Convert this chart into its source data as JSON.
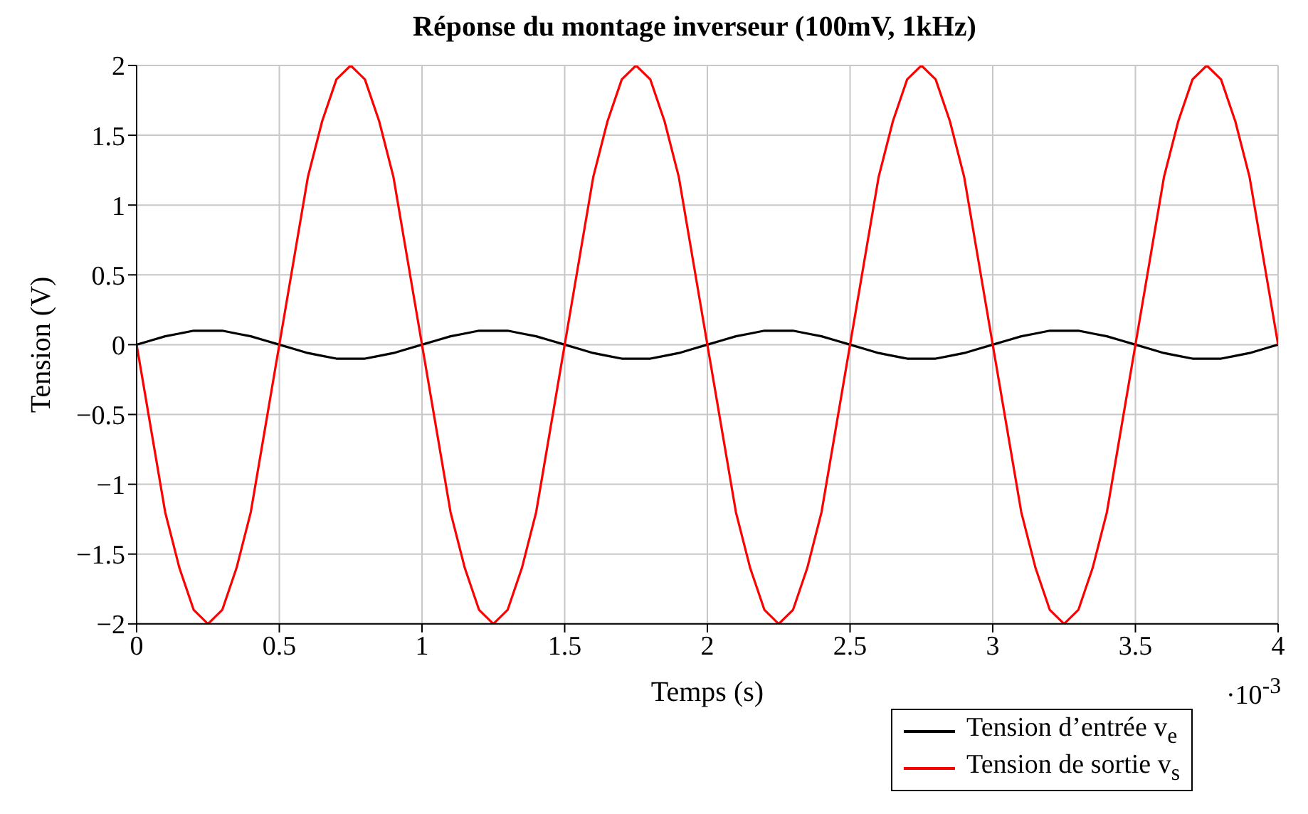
{
  "chart_data": {
    "type": "line",
    "title": "Réponse du montage inverseur (100mV, 1kHz)",
    "xlabel": "Temps (s)",
    "ylabel": "Tension (V)",
    "annotations": [
      "·10$^{-3}$"
    ],
    "x": [
      0,
      0.05,
      0.1,
      0.15,
      0.2,
      0.25,
      0.3,
      0.35,
      0.4,
      0.45,
      0.5,
      0.55,
      0.6,
      0.65,
      0.7,
      0.75,
      0.8,
      0.85,
      0.9,
      0.95,
      1,
      1.05,
      1.1,
      1.15,
      1.2,
      1.25,
      1.3,
      1.35,
      1.4,
      1.45,
      1.5,
      1.55,
      1.6,
      1.65,
      1.7,
      1.75,
      1.8,
      1.85,
      1.9,
      1.95,
      2,
      2.05,
      2.1,
      2.15,
      2.2,
      2.25,
      2.3,
      2.35,
      2.4,
      2.45,
      2.5,
      2.55,
      2.6,
      2.65,
      2.7,
      2.75,
      2.8,
      2.85,
      2.9,
      2.95,
      3,
      3.05,
      3.1,
      3.15,
      3.2,
      3.25,
      3.3,
      3.35,
      3.4,
      3.45,
      3.5,
      3.55,
      3.6,
      3.65,
      3.7,
      3.75,
      3.8,
      3.85,
      3.9,
      3.95,
      4
    ],
    "series": [
      {
        "name": "Tension d’entrée v$_{e}$",
        "color": "#000000",
        "values": [
          0,
          0.03,
          0.06,
          0.08,
          0.1,
          0.1,
          0.1,
          0.08,
          0.06,
          0.03,
          0,
          -0.03,
          -0.06,
          -0.08,
          -0.1,
          -0.1,
          -0.1,
          -0.08,
          -0.06,
          -0.03,
          0,
          0.03,
          0.06,
          0.08,
          0.1,
          0.1,
          0.1,
          0.08,
          0.06,
          0.03,
          0,
          -0.03,
          -0.06,
          -0.08,
          -0.1,
          -0.1,
          -0.1,
          -0.08,
          -0.06,
          -0.03,
          0,
          0.03,
          0.06,
          0.08,
          0.1,
          0.1,
          0.1,
          0.08,
          0.06,
          0.03,
          0,
          -0.03,
          -0.06,
          -0.08,
          -0.1,
          -0.1,
          -0.1,
          -0.08,
          -0.06,
          -0.03,
          0,
          0.03,
          0.06,
          0.08,
          0.1,
          0.1,
          0.1,
          0.08,
          0.06,
          0.03,
          0,
          -0.03,
          -0.06,
          -0.08,
          -0.1,
          -0.1,
          -0.1,
          -0.08,
          -0.06,
          -0.03,
          0
        ]
      },
      {
        "name": "Tension de sortie v$_{s}$",
        "color": "#ff0000",
        "values": [
          0,
          -0.6,
          -1.2,
          -1.6,
          -1.9,
          -2,
          -1.9,
          -1.6,
          -1.2,
          -0.6,
          0,
          0.6,
          1.2,
          1.6,
          1.9,
          2,
          1.9,
          1.6,
          1.2,
          0.6,
          0,
          -0.6,
          -1.2,
          -1.6,
          -1.9,
          -2,
          -1.9,
          -1.6,
          -1.2,
          -0.6,
          0,
          0.6,
          1.2,
          1.6,
          1.9,
          2,
          1.9,
          1.6,
          1.2,
          0.6,
          0,
          -0.6,
          -1.2,
          -1.6,
          -1.9,
          -2,
          -1.9,
          -1.6,
          -1.2,
          -0.6,
          0,
          0.6,
          1.2,
          1.6,
          1.9,
          2,
          1.9,
          1.6,
          1.2,
          0.6,
          0,
          -0.6,
          -1.2,
          -1.6,
          -1.9,
          -2,
          -1.9,
          -1.6,
          -1.2,
          -0.6,
          0,
          0.6,
          1.2,
          1.6,
          1.9,
          2,
          1.9,
          1.6,
          1.2,
          0.6,
          0
        ]
      }
    ],
    "xlim": [
      0,
      4
    ],
    "xticks": [
      0,
      0.5,
      1,
      1.5,
      2,
      2.5,
      3,
      3.5,
      4
    ],
    "ylim": [
      -2,
      2
    ],
    "yticks": [
      {
        "value": -2,
        "label": "−2"
      },
      {
        "value": -1.5,
        "label": "−1.5"
      },
      {
        "value": -1,
        "label": "−1"
      },
      {
        "value": -0.5,
        "label": "−0.5"
      },
      0,
      0.5,
      1,
      1.5,
      2
    ],
    "grid": true,
    "legend": "bottom right",
    "marker": "none",
    "line_style": "solid"
  }
}
